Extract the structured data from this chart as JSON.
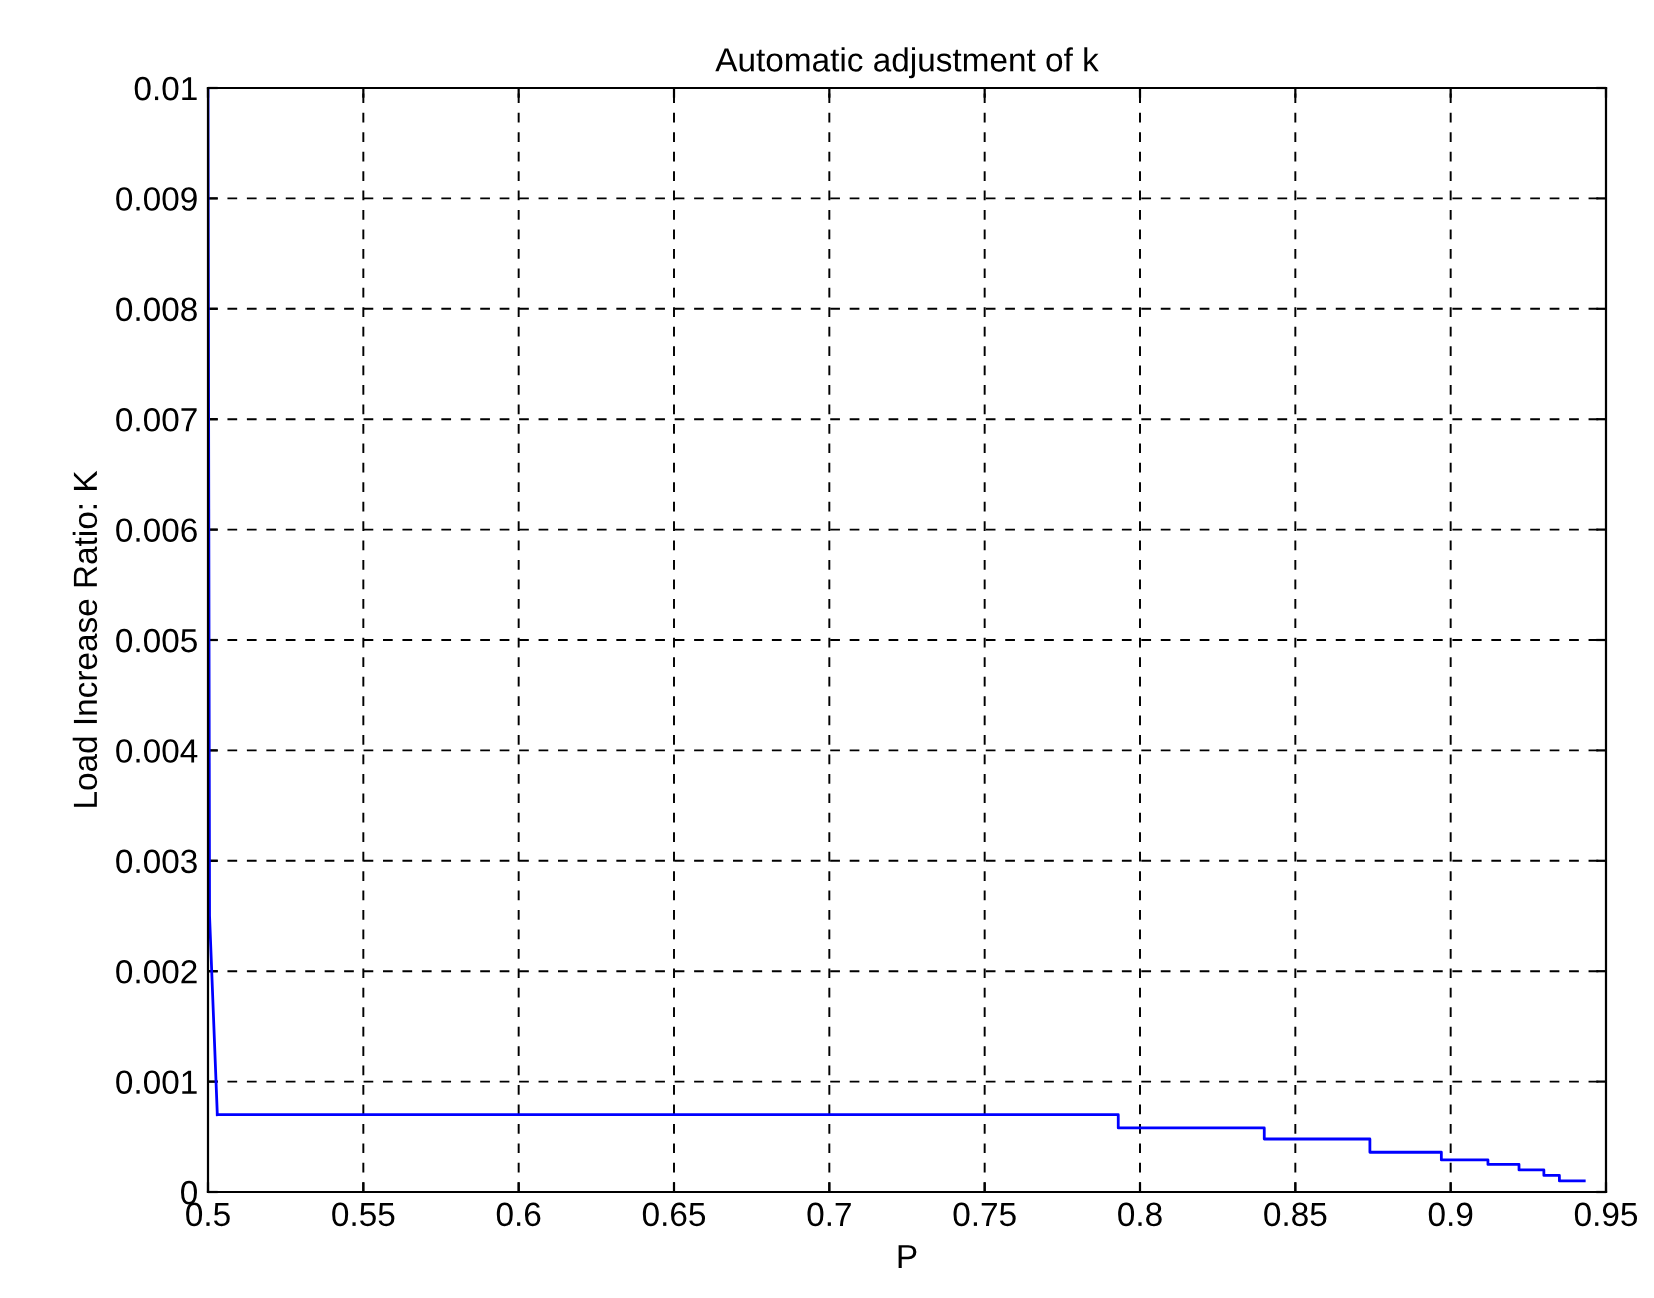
{
  "chart_data": {
    "type": "step",
    "title": "Automatic adjustment of k",
    "xlabel": "P",
    "ylabel": "Load Increase Ratio: K",
    "series": [
      {
        "type": "line",
        "color": "#0000ff",
        "x": [
          0.5,
          0.5005,
          0.503
        ],
        "values": [
          0.01,
          0.0025,
          0.0007
        ]
      },
      {
        "color": "#0000ff",
        "x": [
          0.503,
          0.793,
          0.84,
          0.874,
          0.897,
          0.912,
          0.922,
          0.93,
          0.935,
          0.943
        ],
        "values": [
          0.0007,
          0.00058,
          0.00048,
          0.00036,
          0.00029,
          0.00025,
          0.0002,
          0.00015,
          0.0001,
          0.0001
        ]
      }
    ],
    "xlim": [
      0.5,
      0.95
    ],
    "xticks": [
      0.5,
      0.55,
      0.6,
      0.65,
      0.7,
      0.75,
      0.8,
      0.85,
      0.9,
      0.95
    ],
    "ylim": [
      0,
      0.01
    ],
    "yticks": [
      0,
      0.001,
      0.002,
      0.003,
      0.004,
      0.005,
      0.006,
      0.007,
      0.008,
      0.009,
      0.01
    ],
    "grid": true
  }
}
